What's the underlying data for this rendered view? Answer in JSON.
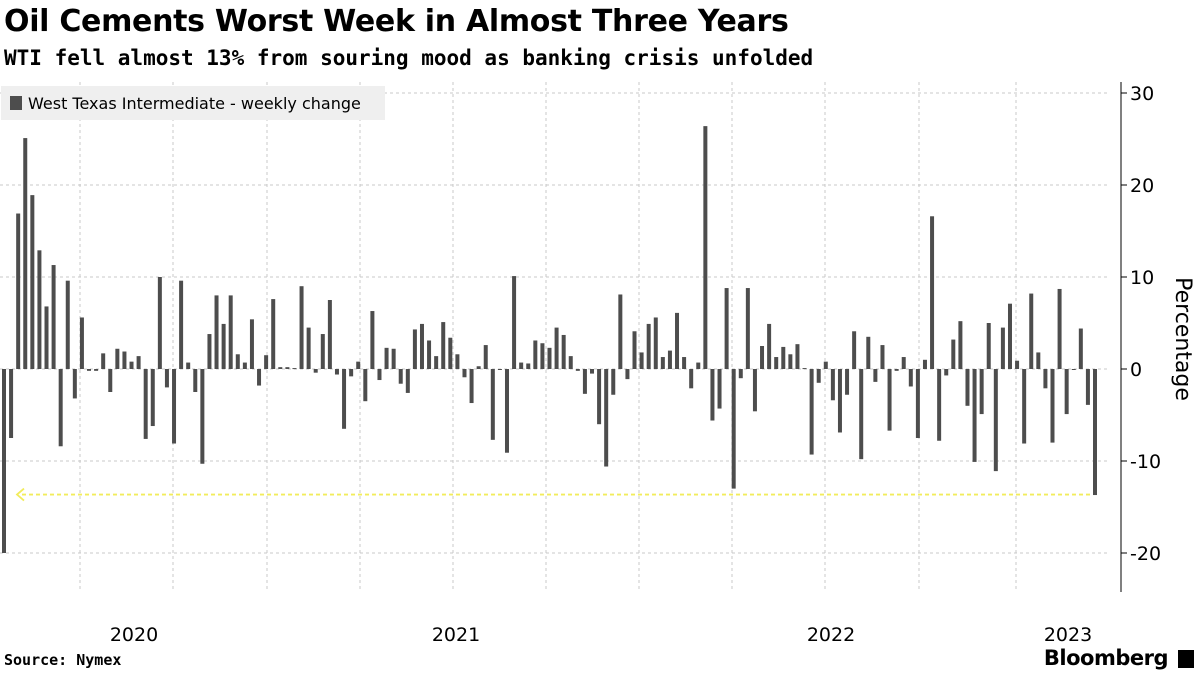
{
  "header": {
    "title": "Oil Cements Worst Week in Almost Three Years",
    "subtitle": "WTI fell almost 13% from souring mood as banking crisis unfolded"
  },
  "footer": {
    "source": "Source: Nymex",
    "brand": "Bloomberg"
  },
  "colors": {
    "bar": "#4d4d4d",
    "grid": "#c8c8c8",
    "legend_bg": "#efefef",
    "annotation": "#f2ec5c"
  },
  "chart_data": {
    "type": "bar",
    "series_name": "West Texas Intermediate - weekly change",
    "ylabel": "Percentage",
    "xlabel": "",
    "ylim": [
      -24,
      31
    ],
    "yticks": [
      30,
      20,
      10,
      0,
      -10,
      -20
    ],
    "year_labels": [
      "2020",
      "2021",
      "2022",
      "2023"
    ],
    "grid": "dashed",
    "legend": "top-left",
    "annotation": "dashed arrow at the latest weekly decline",
    "values": [
      -20.0,
      -7.5,
      16.9,
      25.1,
      18.9,
      12.9,
      6.8,
      11.3,
      -8.4,
      9.6,
      -3.2,
      5.6,
      -0.2,
      -0.2,
      1.7,
      -2.5,
      2.2,
      1.9,
      0.8,
      1.4,
      -7.6,
      -6.2,
      10.0,
      -2.0,
      -8.1,
      9.6,
      0.7,
      -2.5,
      -10.3,
      3.8,
      8.0,
      4.9,
      8.0,
      1.6,
      0.7,
      5.4,
      -1.8,
      1.5,
      7.6,
      0.2,
      0.2,
      0.1,
      9.0,
      4.5,
      -0.4,
      3.8,
      7.5,
      -0.6,
      -6.5,
      -0.8,
      0.8,
      -3.5,
      6.3,
      -1.2,
      2.3,
      2.2,
      -1.6,
      -2.6,
      4.3,
      4.9,
      3.1,
      1.4,
      5.1,
      3.4,
      1.6,
      -0.9,
      -3.7,
      0.3,
      2.6,
      -7.7,
      0.0,
      -9.1,
      10.1,
      0.7,
      0.6,
      3.1,
      2.8,
      2.3,
      4.5,
      3.7,
      1.4,
      -0.2,
      -2.7,
      -0.5,
      -6.0,
      -10.6,
      -2.8,
      8.1,
      -1.1,
      4.1,
      1.8,
      4.9,
      5.6,
      1.3,
      2.0,
      6.1,
      1.3,
      -2.1,
      0.7,
      26.4,
      -5.6,
      -4.3,
      8.8,
      -13.0,
      -1.0,
      8.8,
      -4.6,
      2.5,
      4.9,
      1.3,
      2.4,
      1.6,
      2.7,
      0.1,
      -9.3,
      -1.5,
      0.8,
      -3.4,
      -6.9,
      -2.8,
      4.1,
      -9.8,
      3.5,
      -1.4,
      2.6,
      -6.7,
      -0.2,
      1.3,
      -1.9,
      -7.5,
      1.0,
      16.6,
      -7.8,
      -0.7,
      3.2,
      5.2,
      -4.0,
      -10.1,
      -4.9,
      5.0,
      -11.1,
      4.5,
      7.1,
      0.9,
      -8.1,
      8.2,
      1.8,
      -2.1,
      -8.0,
      8.7,
      -4.9,
      0.0,
      4.4,
      -3.9,
      -13.7
    ]
  }
}
